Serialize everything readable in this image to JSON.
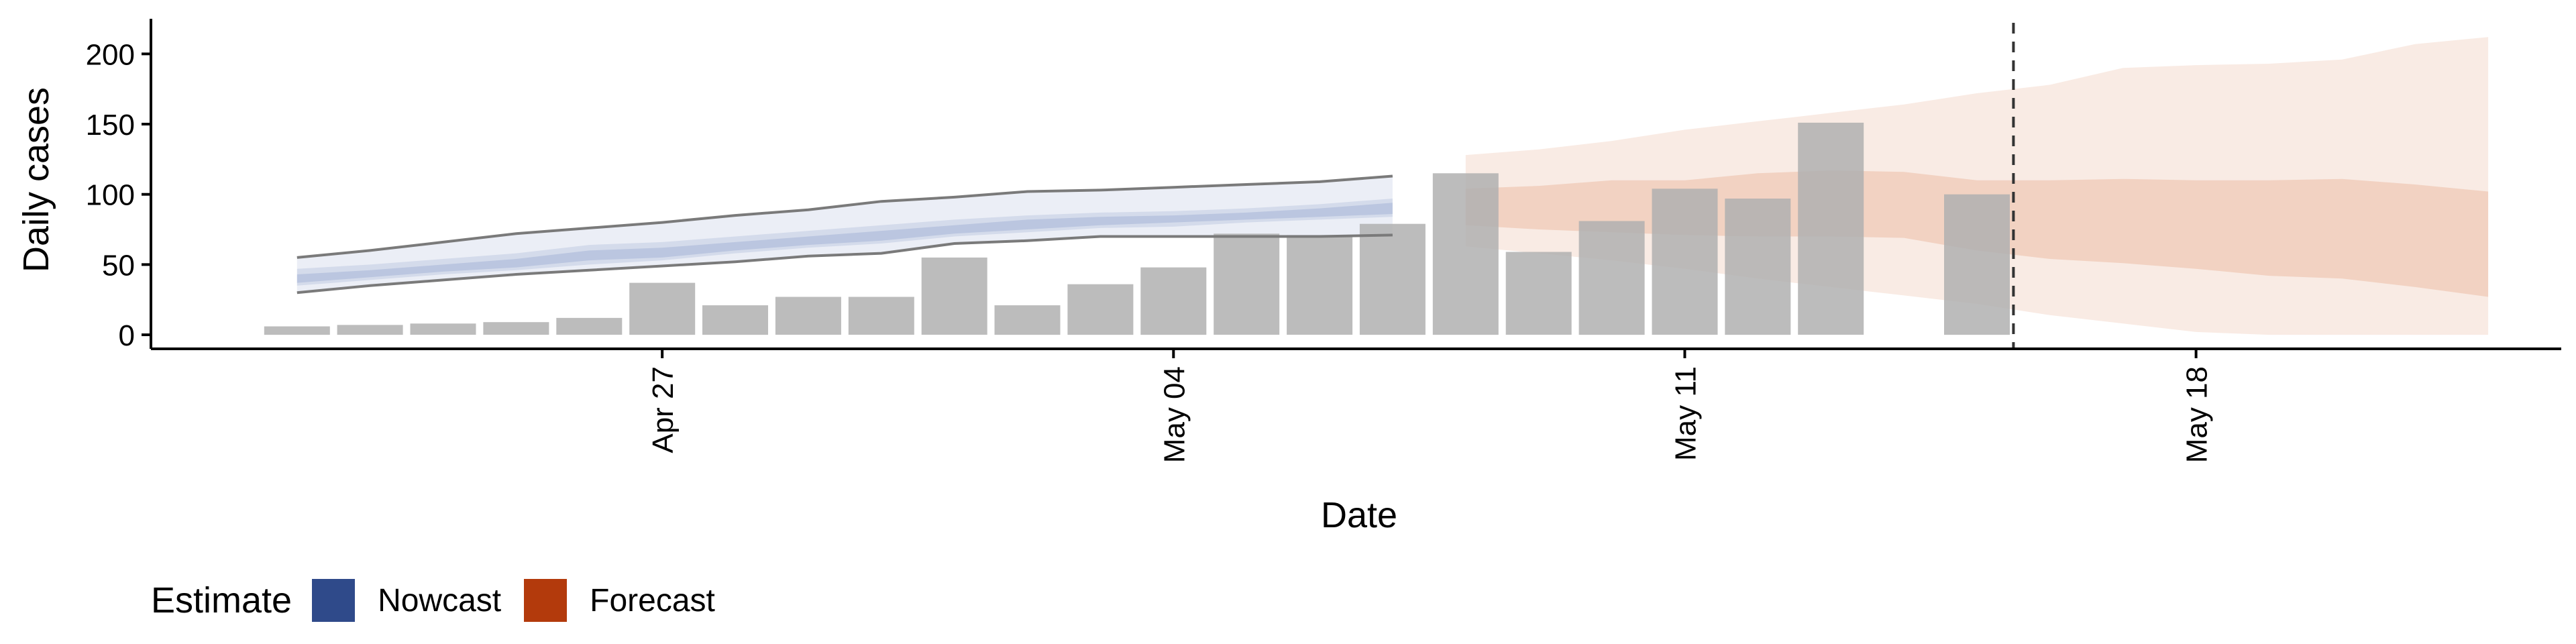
{
  "chart_data": {
    "type": "bar",
    "xlabel": "Date",
    "ylabel": "Daily cases",
    "x_ticks": [
      "Apr 27",
      "May 04",
      "May 11",
      "May 18"
    ],
    "x_tick_dates": [
      "2020-04-27",
      "2020-05-04",
      "2020-05-11",
      "2020-05-18"
    ],
    "y_ticks": [
      0,
      50,
      100,
      150,
      200
    ],
    "ylim": [
      -10,
      225
    ],
    "xlim": [
      "2020-04-20",
      "2020-05-23"
    ],
    "grid": false,
    "legend_position": "bottom-left",
    "legend": {
      "title": "Estimate",
      "entries": [
        {
          "label": "Nowcast",
          "color": "#2f4a8a"
        },
        {
          "label": "Forecast",
          "color": "#b33a0c"
        }
      ]
    },
    "colors": {
      "bars": "#b0b0b0",
      "nowcast_band": "#3b5ba5",
      "forecast_band": "#d9794a",
      "outer_line": "#7a7a7a",
      "vline": "#333333"
    },
    "bars": [
      {
        "date": "2020-04-22",
        "value": 6
      },
      {
        "date": "2020-04-23",
        "value": 7
      },
      {
        "date": "2020-04-24",
        "value": 8
      },
      {
        "date": "2020-04-25",
        "value": 9
      },
      {
        "date": "2020-04-26",
        "value": 12
      },
      {
        "date": "2020-04-27",
        "value": 37
      },
      {
        "date": "2020-04-28",
        "value": 21
      },
      {
        "date": "2020-04-29",
        "value": 27
      },
      {
        "date": "2020-04-30",
        "value": 27
      },
      {
        "date": "2020-05-01",
        "value": 55
      },
      {
        "date": "2020-05-02",
        "value": 21
      },
      {
        "date": "2020-05-03",
        "value": 36
      },
      {
        "date": "2020-05-04",
        "value": 48
      },
      {
        "date": "2020-05-05",
        "value": 72
      },
      {
        "date": "2020-05-06",
        "value": 71
      },
      {
        "date": "2020-05-07",
        "value": 79
      },
      {
        "date": "2020-05-08",
        "value": 115
      },
      {
        "date": "2020-05-09",
        "value": 59
      },
      {
        "date": "2020-05-10",
        "value": 81
      },
      {
        "date": "2020-05-11",
        "value": 104
      },
      {
        "date": "2020-05-12",
        "value": 97
      },
      {
        "date": "2020-05-13",
        "value": 151
      },
      {
        "date": "2020-05-15",
        "value": 100
      }
    ],
    "nowcast": {
      "dates": [
        "2020-04-22",
        "2020-04-23",
        "2020-04-24",
        "2020-04-25",
        "2020-04-26",
        "2020-04-27",
        "2020-04-28",
        "2020-04-29",
        "2020-04-30",
        "2020-05-01",
        "2020-05-02",
        "2020-05-03",
        "2020-05-04",
        "2020-05-05",
        "2020-05-06",
        "2020-05-07"
      ],
      "outer_upper": [
        55,
        60,
        66,
        72,
        76,
        80,
        85,
        89,
        95,
        98,
        102,
        103,
        105,
        107,
        109,
        113
      ],
      "outer_lower": [
        30,
        35,
        39,
        43,
        46,
        49,
        52,
        56,
        58,
        65,
        67,
        70,
        70,
        70,
        70,
        71
      ],
      "mid_upper": [
        47,
        50,
        54,
        58,
        64,
        66,
        70,
        74,
        78,
        82,
        85,
        87,
        88,
        90,
        93,
        97
      ],
      "mid_lower": [
        35,
        39,
        43,
        46,
        50,
        53,
        58,
        62,
        65,
        70,
        73,
        76,
        77,
        80,
        82,
        84
      ],
      "inner_upper": [
        43,
        46,
        50,
        54,
        60,
        62,
        66,
        70,
        74,
        78,
        82,
        84,
        85,
        87,
        90,
        94
      ],
      "inner_lower": [
        37,
        41,
        45,
        48,
        53,
        55,
        60,
        64,
        67,
        72,
        75,
        78,
        80,
        82,
        84,
        86
      ]
    },
    "forecast": {
      "dates": [
        "2020-05-08",
        "2020-05-09",
        "2020-05-10",
        "2020-05-11",
        "2020-05-12",
        "2020-05-13",
        "2020-05-14",
        "2020-05-15",
        "2020-05-16",
        "2020-05-17",
        "2020-05-18",
        "2020-05-19",
        "2020-05-20",
        "2020-05-21",
        "2020-05-22"
      ],
      "outer_upper": [
        128,
        132,
        138,
        146,
        152,
        158,
        164,
        172,
        178,
        190,
        192,
        193,
        196,
        207,
        212
      ],
      "outer_lower": [
        63,
        58,
        53,
        47,
        40,
        34,
        28,
        22,
        14,
        8,
        2,
        0,
        0,
        0,
        0
      ],
      "inner_upper": [
        104,
        106,
        110,
        110,
        115,
        117,
        116,
        110,
        110,
        111,
        110,
        110,
        111,
        107,
        102
      ],
      "inner_lower": [
        78,
        75,
        73,
        71,
        70,
        70,
        69,
        60,
        54,
        51,
        47,
        42,
        40,
        34,
        27
      ]
    },
    "vline_date": "2020-05-16"
  }
}
